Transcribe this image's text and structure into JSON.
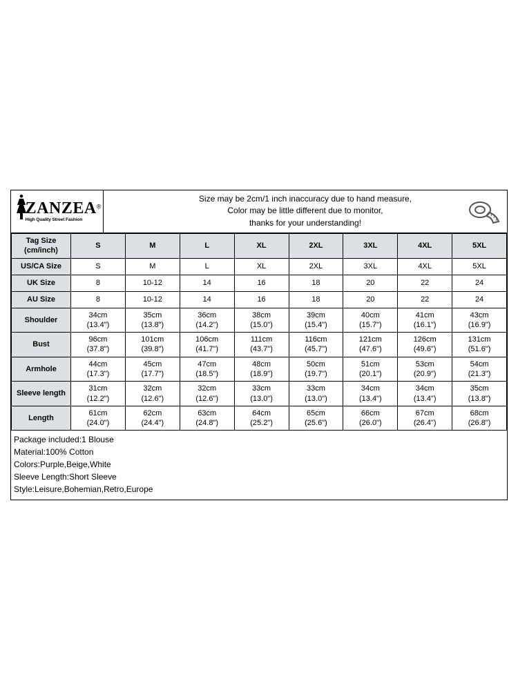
{
  "brand": {
    "name": "ZANZEA",
    "reg": "®",
    "tagline": "High Quality Street Fashion"
  },
  "disclaimer": {
    "line1": "Size may be 2cm/1 inch inaccuracy due to hand measure,",
    "line2": "Color may be little different due to monitor,",
    "line3": "thanks for your understanding!"
  },
  "columns": {
    "head": "Tag Size (cm/inch)",
    "sizes": [
      "S",
      "M",
      "L",
      "XL",
      "2XL",
      "3XL",
      "4XL",
      "5XL"
    ]
  },
  "single_rows": [
    {
      "label": "US/CA Size",
      "vals": [
        "S",
        "M",
        "L",
        "XL",
        "2XL",
        "3XL",
        "4XL",
        "5XL"
      ]
    },
    {
      "label": "UK Size",
      "vals": [
        "8",
        "10-12",
        "14",
        "16",
        "18",
        "20",
        "22",
        "24"
      ]
    },
    {
      "label": "AU Size",
      "vals": [
        "8",
        "10-12",
        "14",
        "16",
        "18",
        "20",
        "22",
        "24"
      ]
    }
  ],
  "double_rows": [
    {
      "label": "Shoulder",
      "cm": [
        "34cm",
        "35cm",
        "36cm",
        "38cm",
        "39cm",
        "40cm",
        "41cm",
        "43cm"
      ],
      "inch": [
        "(13.4\")",
        "(13.8\")",
        "(14.2\")",
        "(15.0\")",
        "(15.4\")",
        "(15.7\")",
        "(16.1\")",
        "(16.9\")"
      ]
    },
    {
      "label": "Bust",
      "cm": [
        "96cm",
        "101cm",
        "106cm",
        "111cm",
        "116cm",
        "121cm",
        "126cm",
        "131cm"
      ],
      "inch": [
        "(37.8\")",
        "(39.8\")",
        "(41.7\")",
        "(43.7\")",
        "(45.7\")",
        "(47.6\")",
        "(49.6\")",
        "(51.6\")"
      ]
    },
    {
      "label": "Armhole",
      "cm": [
        "44cm",
        "45cm",
        "47cm",
        "48cm",
        "50cm",
        "51cm",
        "53cm",
        "54cm"
      ],
      "inch": [
        "(17.3\")",
        "(17.7\")",
        "(18.5\")",
        "(18.9\")",
        "(19.7\")",
        "(20.1\")",
        "(20.9\")",
        "(21.3\")"
      ]
    },
    {
      "label": "Sleeve length",
      "cm": [
        "31cm",
        "32cm",
        "32cm",
        "33cm",
        "33cm",
        "34cm",
        "34cm",
        "35cm"
      ],
      "inch": [
        "(12.2\")",
        "(12.6\")",
        "(12.6\")",
        "(13.0\")",
        "(13.0\")",
        "(13.4\")",
        "(13.4\")",
        "(13.8\")"
      ]
    },
    {
      "label": "Length",
      "cm": [
        "61cm",
        "62cm",
        "63cm",
        "64cm",
        "65cm",
        "66cm",
        "67cm",
        "68cm"
      ],
      "inch": [
        "(24.0\")",
        "(24.4\")",
        "(24.8\")",
        "(25.2\")",
        "(25.6\")",
        "(26.0\")",
        "(26.4\")",
        "(26.8\")"
      ]
    }
  ],
  "footer": [
    "Package included:1 Blouse",
    "Material:100% Cotton",
    "Colors:Purple,Beige,White",
    "Sleeve Length:Short Sleeve",
    "Style:Leisure,Bohemian,Retro,Europe"
  ],
  "style": {
    "header_bg": "#dbe0e2",
    "border_color": "#000000",
    "text_color": "#000000",
    "font_size_body": 11,
    "font_size_footer": 12
  }
}
